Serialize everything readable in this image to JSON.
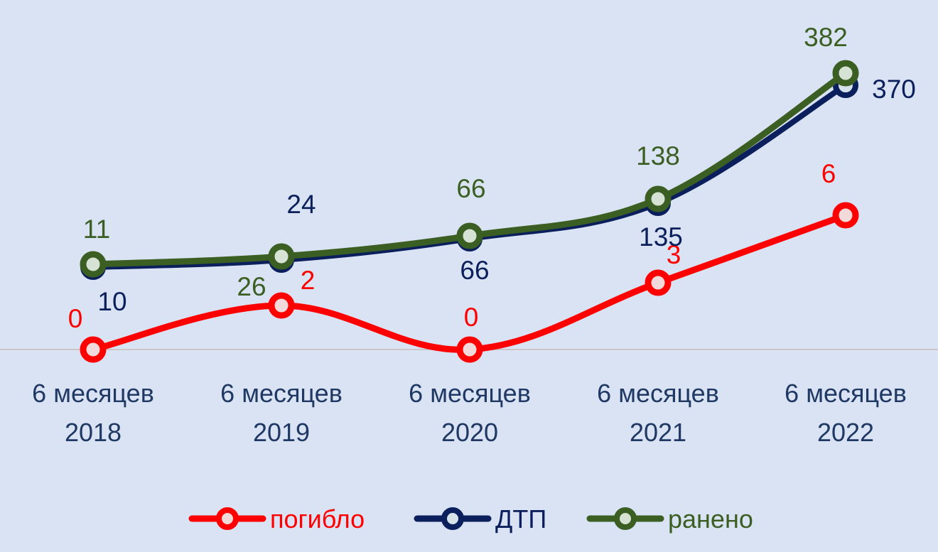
{
  "chart_data": {
    "type": "line",
    "categories": [
      [
        "6 месяцев",
        "2018"
      ],
      [
        "6 месяцев",
        "2019"
      ],
      [
        "6 месяцев",
        "2020"
      ],
      [
        "6 месяцев",
        "2021"
      ],
      [
        "6 месяцев",
        "2022"
      ]
    ],
    "series": [
      {
        "name": "погибло",
        "color": "#ff0000",
        "values": [
          0,
          2,
          0,
          3,
          6
        ]
      },
      {
        "name": "ДТП",
        "color": "#0b1f5c",
        "values": [
          10,
          24,
          66,
          135,
          370
        ]
      },
      {
        "name": "ранено",
        "color": "#3b5e23",
        "values": [
          11,
          26,
          66,
          138,
          382
        ]
      }
    ],
    "grid": false,
    "legend_position": "bottom",
    "smooth": true
  }
}
